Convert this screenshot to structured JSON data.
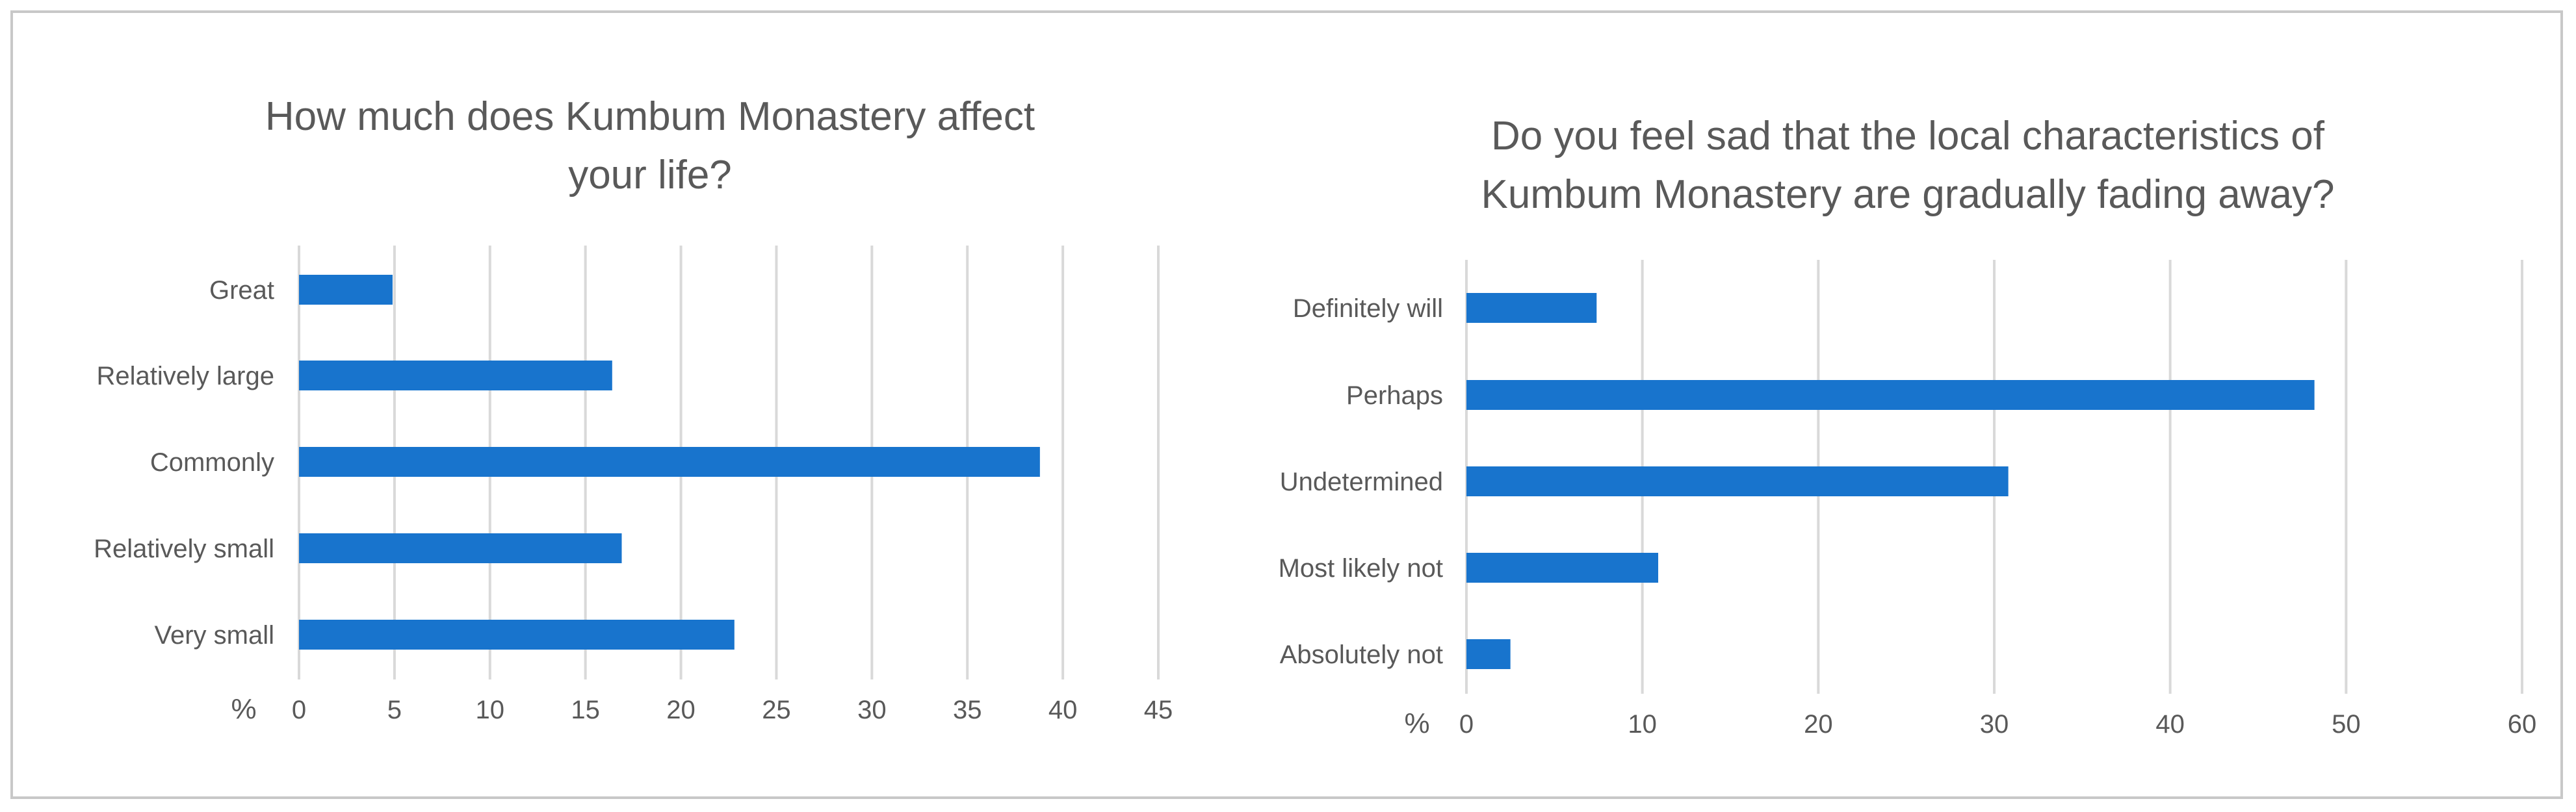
{
  "colors": {
    "bar": "#1874cd",
    "grid": "#d9d9d9",
    "text": "#595959"
  },
  "chart_data": [
    {
      "type": "bar",
      "orientation": "horizontal",
      "title_lines": [
        "How much does Kumbum Monastery affect",
        "your life?"
      ],
      "categories": [
        "Great",
        "Relatively large",
        "Commonly",
        "Relatively small",
        "Very small"
      ],
      "values": [
        4.9,
        16.4,
        38.8,
        16.9,
        22.8
      ],
      "xlabel": "%",
      "xlim": [
        0,
        45
      ],
      "xticks": [
        "0",
        "5",
        "10",
        "15",
        "20",
        "25",
        "30",
        "35",
        "40",
        "45"
      ],
      "grid": true
    },
    {
      "type": "bar",
      "orientation": "horizontal",
      "title_lines": [
        "Do you feel sad that the local characteristics of",
        "Kumbum Monastery are gradually fading away?"
      ],
      "categories": [
        "Definitely will",
        "Perhaps",
        "Undetermined",
        "Most likely not",
        "Absolutely not"
      ],
      "values": [
        7.4,
        48.2,
        30.8,
        10.9,
        2.5
      ],
      "xlabel": "%",
      "xlim": [
        0,
        60
      ],
      "xticks": [
        "0",
        "10",
        "20",
        "30",
        "40",
        "50",
        "60"
      ],
      "grid": true
    }
  ]
}
